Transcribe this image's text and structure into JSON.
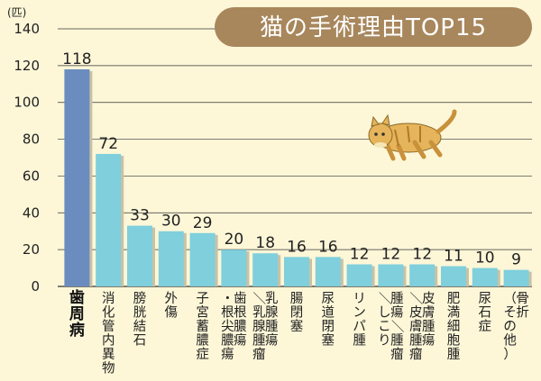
{
  "chart_data": {
    "type": "bar",
    "title": "猫の手術理由TOP15",
    "unit": "(匹)",
    "ylim": [
      0,
      140
    ],
    "yticks": [
      0,
      20,
      40,
      60,
      80,
      100,
      120,
      140
    ],
    "grid": true,
    "categories": [
      "歯周病",
      "消化管内異物",
      "膀胱結石",
      "外傷",
      "子宮蓄膿症",
      "歯根膿瘍・根尖膿瘍",
      "乳腺腫瘍／乳腺腫瘤",
      "腸閉塞",
      "尿道閉塞",
      "リンパ腫",
      "腫瘍／腫瘤／しこり",
      "皮膚腫瘍／皮膚腫瘤",
      "肥満細胞腫",
      "尿石症",
      "骨折（その他）"
    ],
    "cat_columns": [
      [
        "歯周病"
      ],
      [
        "消化管内異物"
      ],
      [
        "膀胱結石"
      ],
      [
        "外傷"
      ],
      [
        "子宮蓄膿症"
      ],
      [
        "歯根膿瘍",
        "・根尖膿瘍"
      ],
      [
        "乳腺腫瘍",
        "／乳腺腫瘤"
      ],
      [
        "腸閉塞"
      ],
      [
        "尿道閉塞"
      ],
      [
        "リンパ腫"
      ],
      [
        "腫瘍／腫瘤",
        "／しこり"
      ],
      [
        "皮膚腫瘍",
        "／皮膚腫瘤"
      ],
      [
        "肥満細胞腫"
      ],
      [
        "尿石症"
      ],
      [
        "骨折",
        "（その他）"
      ]
    ],
    "values": [
      118,
      72,
      33,
      30,
      29,
      20,
      18,
      16,
      16,
      12,
      12,
      12,
      11,
      10,
      9
    ],
    "colors": {
      "highlight_bar": "#6b8cbf",
      "bar": "#7fcfdc",
      "title_badge": "#a8875c",
      "background": "#fdf7d8"
    }
  }
}
